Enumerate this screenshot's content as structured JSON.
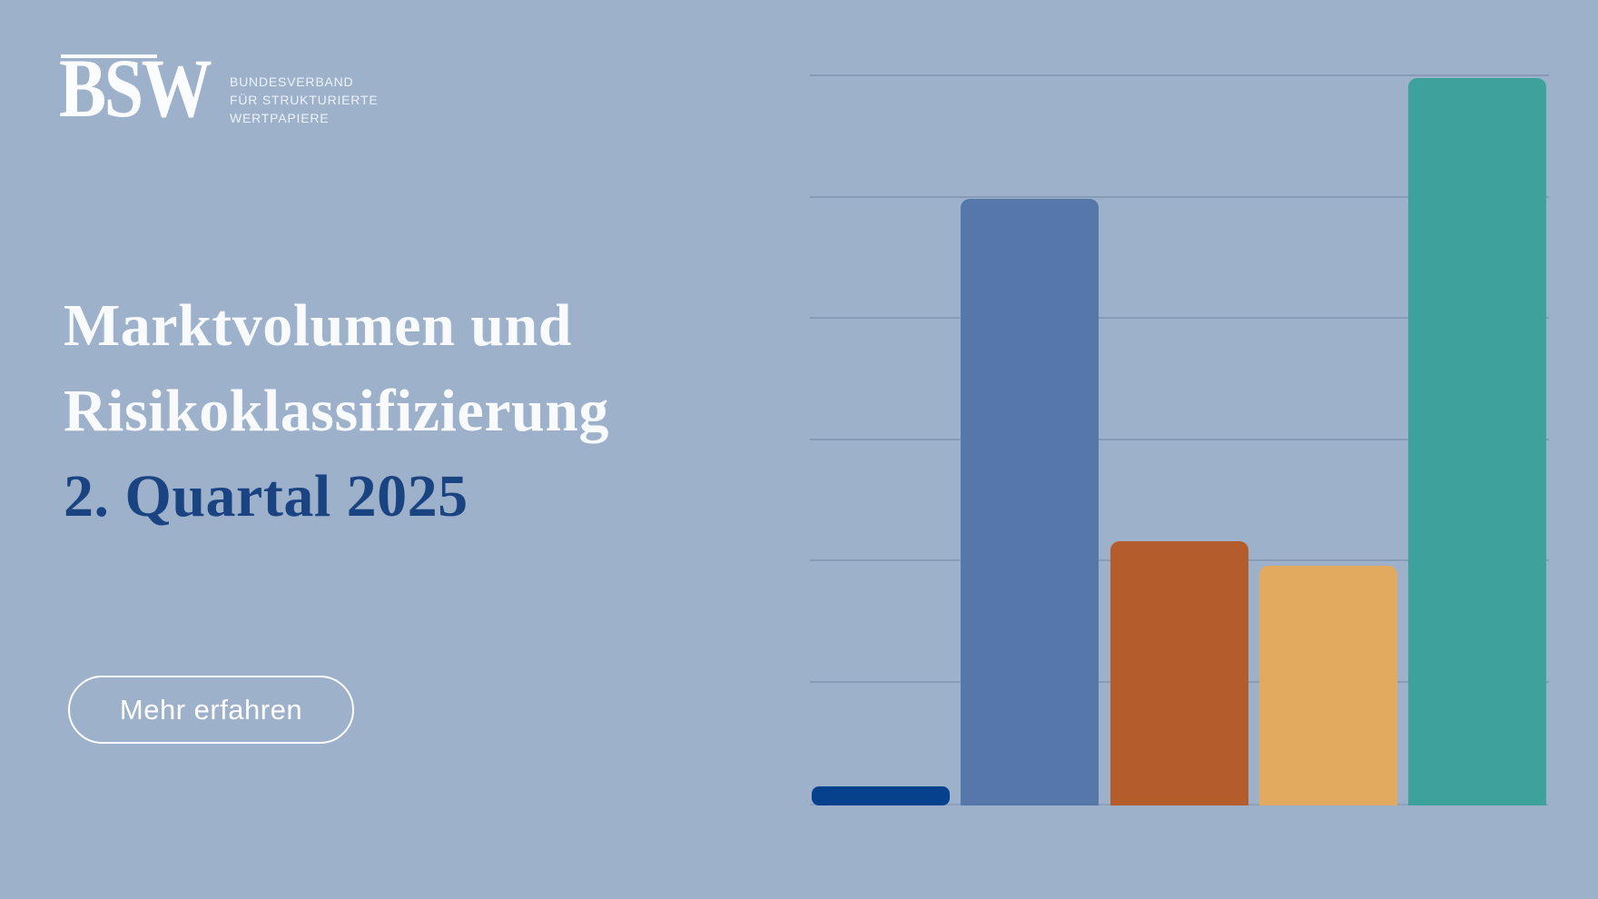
{
  "brand": {
    "logo_text": "BSW",
    "subtitle_lines": [
      "BUNDESVERBAND",
      "FÜR STRUKTURIERTE",
      "WERTPAPIERE"
    ]
  },
  "hero": {
    "title_line1": "Marktvolumen und",
    "title_line2": "Risikoklassifizierung",
    "title_line3": "2. Quartal 2025"
  },
  "cta": {
    "label": "Mehr erfahren"
  },
  "colors": {
    "background": "#9db1cb",
    "heading_white": "#f8fafc",
    "heading_navy": "#1a4382",
    "button_border": "#ffffff",
    "gridline": "#8094b0",
    "bar_navy": "#05418d",
    "bar_blue": "#5577aa",
    "bar_rust": "#b55c2d",
    "bar_amber": "#e2aa5f",
    "bar_teal": "#3da29b"
  },
  "chart_data": {
    "type": "bar",
    "categories": [
      "",
      "",
      "",
      "",
      ""
    ],
    "values": [
      0.16,
      5.0,
      2.18,
      1.98,
      6.0
    ],
    "bar_colors": [
      "#05418d",
      "#5577aa",
      "#b55c2d",
      "#e2aa5f",
      "#3da29b"
    ],
    "title": "",
    "xlabel": "",
    "ylabel": "",
    "ylim": [
      0,
      6.2
    ],
    "grid": true,
    "gridline_count": 6,
    "legend": false,
    "axis_tick_labels_visible": false,
    "note_units": "gridline units; no numeric axis labels visible"
  }
}
